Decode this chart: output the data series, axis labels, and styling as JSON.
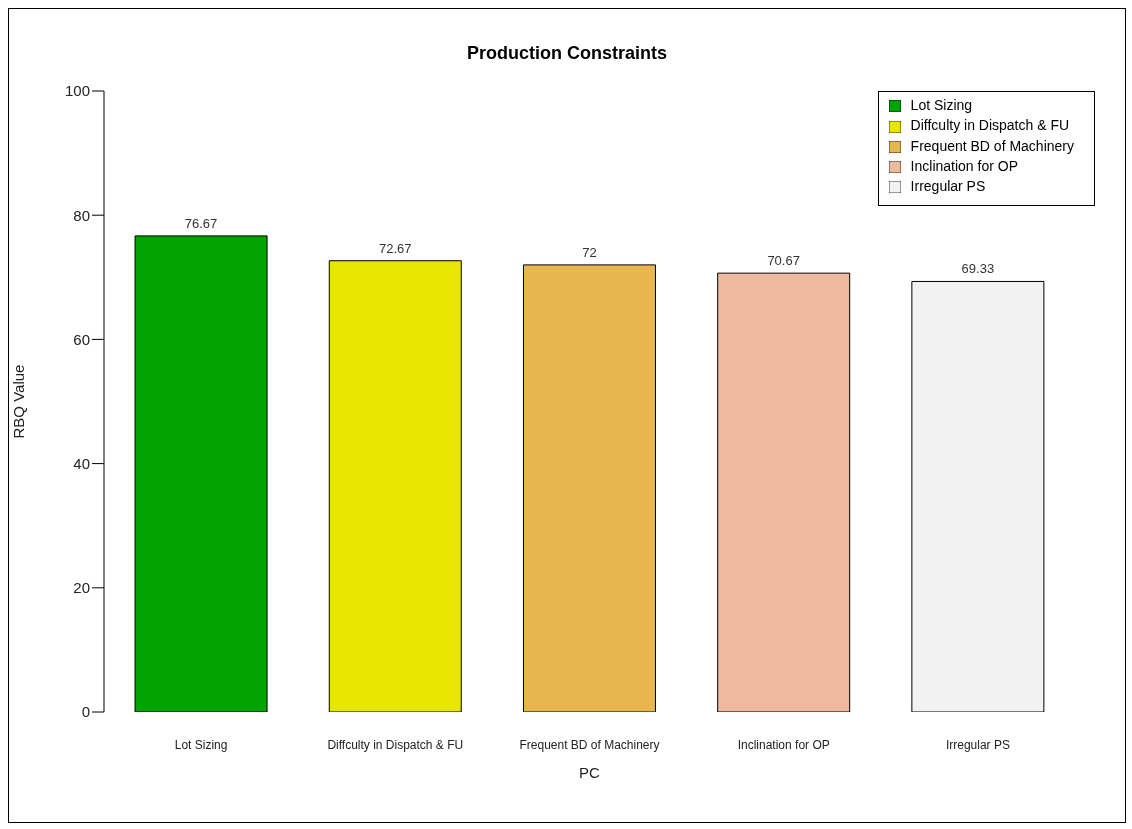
{
  "chart_data": {
    "type": "bar",
    "title": "Production Constraints",
    "xlabel": "PC",
    "ylabel": "RBQ Value",
    "categories": [
      "Lot Sizing",
      "Diffculty in Dispatch & FU",
      "Frequent BD of Machinery",
      "Inclination for OP",
      "Irregular PS"
    ],
    "series": [
      {
        "name": "Lot Sizing",
        "color": "#00a400",
        "values": [
          76.67,
          null,
          null,
          null,
          null
        ]
      },
      {
        "name": "Diffculty in Dispatch & FU",
        "color": "#e6e600",
        "values": [
          null,
          72.67,
          null,
          null,
          null
        ]
      },
      {
        "name": "Frequent BD of Machinery",
        "color": "#e8b64e",
        "values": [
          null,
          null,
          72,
          null,
          null
        ]
      },
      {
        "name": "Inclination for OP",
        "color": "#eeb99f",
        "values": [
          null,
          null,
          null,
          70.67,
          null
        ]
      },
      {
        "name": "Irregular PS",
        "color": "#f2f2f2",
        "values": [
          null,
          null,
          null,
          null,
          69.33
        ]
      }
    ],
    "stacked": true,
    "ylim": [
      0,
      100
    ],
    "yticks": [
      0,
      20,
      40,
      60,
      80,
      100
    ],
    "data_labels": true,
    "legend": "top right"
  }
}
